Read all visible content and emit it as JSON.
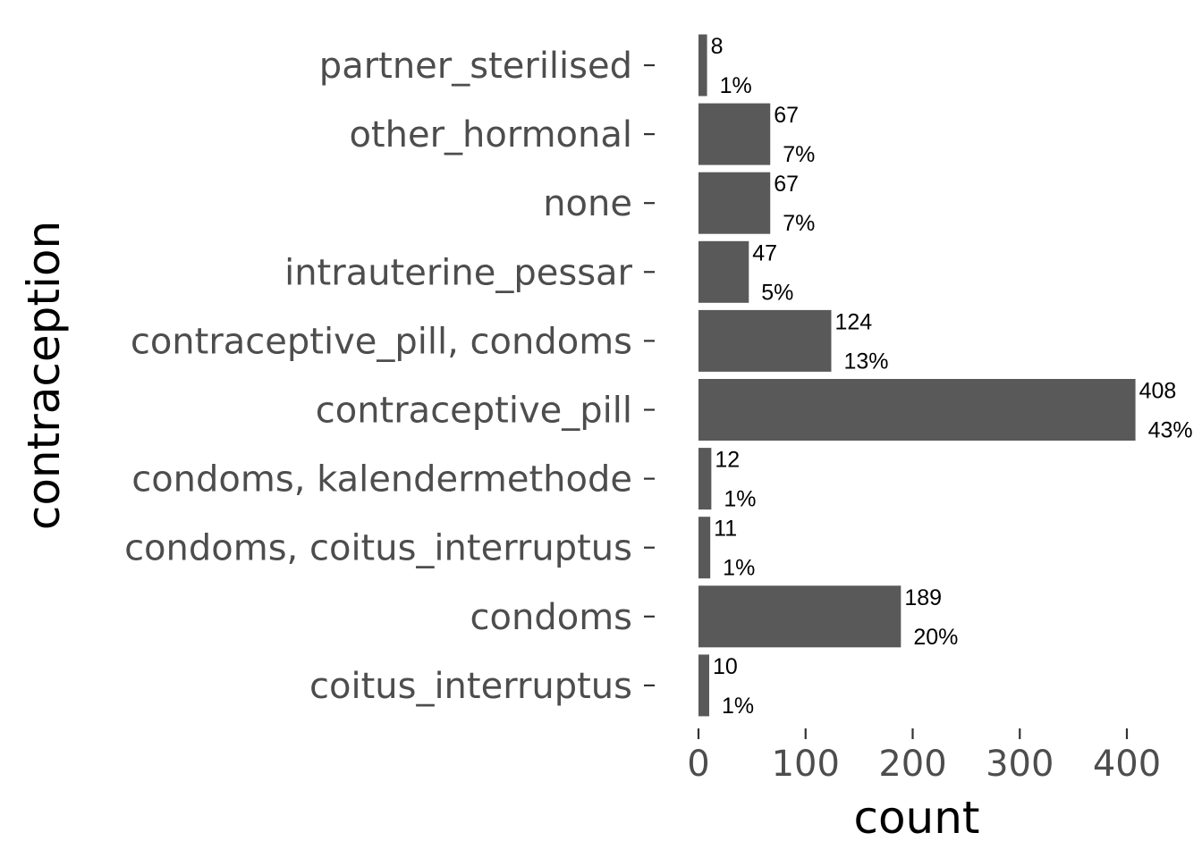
{
  "chart_data": {
    "type": "bar",
    "orientation": "horizontal",
    "categories": [
      "partner_sterilised",
      "other_hormonal",
      "none",
      "intrauterine_pessar",
      "contraceptive_pill, condoms",
      "contraceptive_pill",
      "condoms, kalendermethode",
      "condoms, coitus_interruptus",
      "condoms",
      "coitus_interruptus"
    ],
    "values": [
      8,
      67,
      67,
      47,
      124,
      408,
      12,
      11,
      189,
      10
    ],
    "count_labels": [
      "8",
      "67",
      "67",
      "47",
      "124",
      "408",
      "12",
      "11",
      "189",
      "10"
    ],
    "percent_labels": [
      "1%",
      "7%",
      "7%",
      "5%",
      "13%",
      "43%",
      "1%",
      "1%",
      "20%",
      "1%"
    ],
    "xlabel": "count",
    "ylabel": "contraception",
    "xlim": [
      0,
      430
    ],
    "x_ticks": [
      0,
      100,
      200,
      300,
      400
    ],
    "x_tick_labels": [
      "0",
      "100",
      "200",
      "300",
      "400"
    ],
    "bar_color": "#595959",
    "grid": false,
    "legend": "none"
  }
}
